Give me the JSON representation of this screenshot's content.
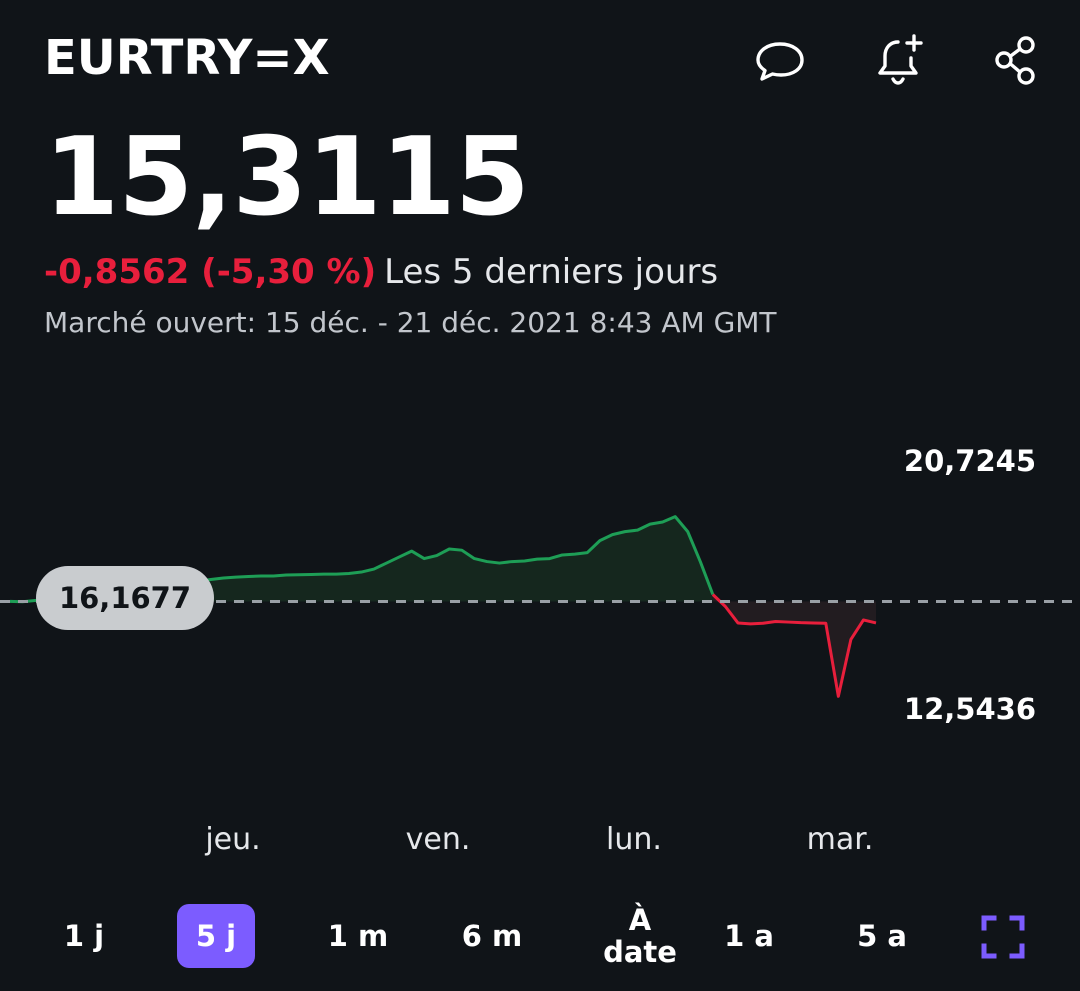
{
  "header": {
    "ticker": "EURTRY=X",
    "icons": [
      "comment-icon",
      "bell-plus-icon",
      "share-icon"
    ]
  },
  "quote": {
    "price": "15,3115",
    "change": "-0,8562 (-5,30 %)",
    "period": "Les 5 derniers jours",
    "market_status": "Marché ouvert: 15 déc. - 21 déc. 2021 8:43 AM GMT"
  },
  "colors": {
    "background": "#101418",
    "up": "#1e9e56",
    "down": "#e81f3c",
    "accent": "#7c5cff"
  },
  "chart_data": {
    "type": "line",
    "y_max_label": "20,7245",
    "y_min_label": "12,5436",
    "previous_close_label": "16,1677",
    "ylim": [
      12.5436,
      20.7245
    ],
    "previous_close": 16.1677,
    "x_labels": [
      "jeu.",
      "ven.",
      "lun.",
      "mar."
    ],
    "series": [
      {
        "values": [
          16.17,
          16.16,
          16.2,
          16.24,
          16.3,
          16.32,
          16.35,
          16.36,
          16.38,
          16.38,
          16.38,
          16.45,
          16.6,
          16.75,
          16.72,
          16.85,
          16.9,
          16.95,
          16.98,
          17.0,
          17.02,
          17.02,
          17.05,
          17.06,
          17.07,
          17.08,
          17.08,
          17.1,
          17.15,
          17.25,
          17.45,
          17.65,
          17.85,
          17.6,
          17.7,
          17.92,
          17.88,
          17.6,
          17.5,
          17.45,
          17.5,
          17.52,
          17.58,
          17.6,
          17.72,
          17.75,
          17.8,
          18.2,
          18.4,
          18.5,
          18.55,
          18.75,
          18.82,
          19.0,
          18.5,
          17.5,
          16.4,
          16.0,
          15.45,
          15.42,
          15.44,
          15.5,
          15.48,
          15.46,
          15.45,
          15.44,
          13.0,
          14.9,
          15.55,
          15.45
        ],
        "colors_by_side": "green above previous close, red below"
      }
    ]
  },
  "ranges": {
    "items": [
      "1 j",
      "5 j",
      "1 m",
      "6 m",
      "À date",
      "1 a",
      "5 a"
    ],
    "active": "5 j"
  }
}
